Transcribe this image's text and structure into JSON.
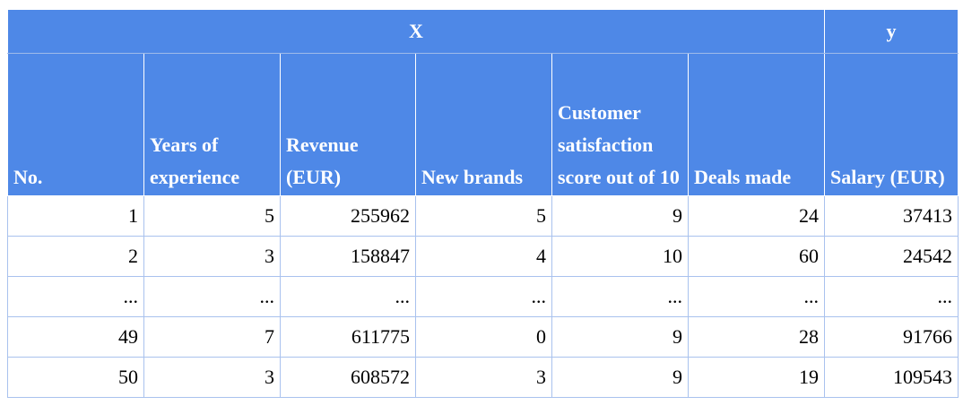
{
  "table": {
    "group_headers": [
      "X",
      "y"
    ],
    "columns": [
      "No.",
      "Years of experience",
      "Revenue (EUR)",
      "New brands",
      "Customer satisfaction score out of 10",
      "Deals made",
      "Salary (EUR)"
    ],
    "rows": [
      [
        "1",
        "5",
        "255962",
        "5",
        "9",
        "24",
        "37413"
      ],
      [
        "2",
        "3",
        "158847",
        "4",
        "10",
        "60",
        "24542"
      ],
      [
        "...",
        "...",
        "...",
        "...",
        "...",
        "...",
        "..."
      ],
      [
        "49",
        "7",
        "611775",
        "0",
        "9",
        "28",
        "91766"
      ],
      [
        "50",
        "3",
        "608572",
        "3",
        "9",
        "19",
        "109543"
      ]
    ]
  },
  "colors": {
    "header_bg": "#4e88e7",
    "grid": "#a9c2ee"
  }
}
